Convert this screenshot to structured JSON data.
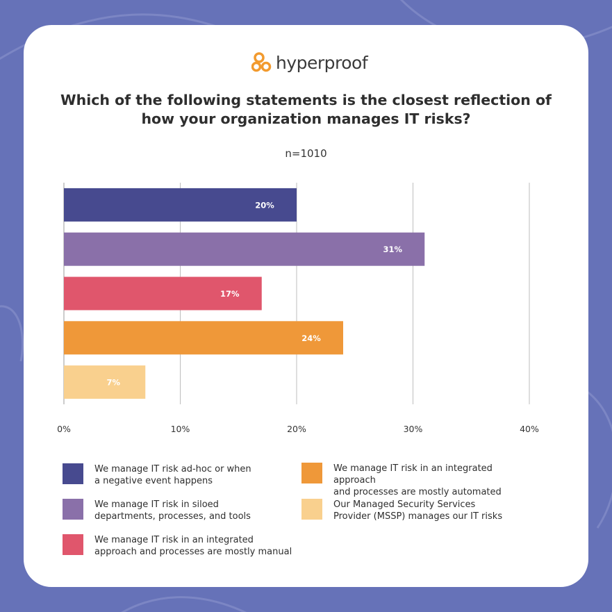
{
  "brand": {
    "name": "hyperproof",
    "accent": "#f29a2e"
  },
  "title_line1": "Which of the following statements is the closest reflection of",
  "title_line2": "how your organization manages IT risks?",
  "subtitle": "n=1010",
  "chart_data": {
    "type": "bar",
    "orientation": "horizontal",
    "categories": [
      "We manage IT risk ad-hoc or when\na negative event happens",
      "We manage IT risk in siloed\ndepartments, processes, and tools",
      "We manage IT risk in an integrated\napproach and processes are mostly manual",
      "We manage IT risk in an integrated approach\nand processes are mostly automated",
      "Our Managed Security Services\nProvider (MSSP) manages our IT risks"
    ],
    "values": [
      20,
      31,
      17,
      24,
      7
    ],
    "value_labels": [
      "20%",
      "31%",
      "17%",
      "24%",
      "7%"
    ],
    "colors": [
      "#474a8f",
      "#8a70a9",
      "#e0566c",
      "#ef9839",
      "#f9d08e"
    ],
    "label_colors": [
      "#ffffff",
      "#ffffff",
      "#ffffff",
      "#ffffff",
      "#ffffff"
    ],
    "xlim": [
      0,
      40
    ],
    "xticks": [
      "0%",
      "10%",
      "20%",
      "30%",
      "40%"
    ],
    "grid": true,
    "legend_position": "bottom"
  },
  "legend": [
    {
      "label": "We manage IT risk ad-hoc or when\na negative event happens",
      "color": "#474a8f"
    },
    {
      "label": "We manage IT risk in siloed\ndepartments, processes, and tools",
      "color": "#8a70a9"
    },
    {
      "label": "We manage IT risk in an integrated\napproach and processes are mostly manual",
      "color": "#e0566c"
    },
    {
      "label": "We manage IT risk in an integrated approach\nand processes are mostly automated",
      "color": "#ef9839"
    },
    {
      "label": "Our Managed Security Services\nProvider (MSSP) manages our IT risks",
      "color": "#f9d08e"
    }
  ]
}
